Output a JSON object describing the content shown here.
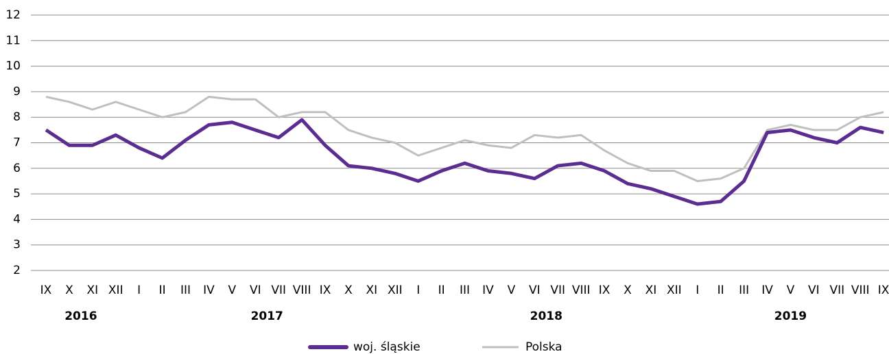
{
  "chart_data": {
    "type": "line",
    "categories": [
      "IX",
      "X",
      "XI",
      "XII",
      "I",
      "II",
      "III",
      "IV",
      "V",
      "VI",
      "VII",
      "VIII",
      "IX",
      "X",
      "XI",
      "XII",
      "I",
      "II",
      "III",
      "IV",
      "V",
      "VI",
      "VII",
      "VIII",
      "IX",
      "X",
      "XI",
      "XII",
      "I",
      "II",
      "III",
      "IV",
      "V",
      "VI",
      "VII",
      "VIII",
      "IX"
    ],
    "year_groups": [
      {
        "label": "2016",
        "size": 4
      },
      {
        "label": "2017",
        "size": 12
      },
      {
        "label": "2018",
        "size": 12
      },
      {
        "label": "2019",
        "size": 9
      }
    ],
    "series": [
      {
        "name": "woj. śląskie",
        "color": "#5c2d91",
        "values": [
          7.5,
          6.9,
          6.9,
          7.3,
          6.8,
          6.4,
          7.1,
          7.7,
          7.8,
          7.5,
          7.2,
          7.9,
          6.9,
          6.1,
          6.0,
          5.8,
          5.5,
          5.9,
          6.2,
          5.9,
          5.8,
          5.6,
          6.1,
          6.2,
          5.9,
          5.4,
          5.2,
          4.9,
          4.6,
          4.7,
          5.5,
          7.4,
          7.5,
          7.2,
          7.0,
          7.6,
          7.4
        ]
      },
      {
        "name": "Polska",
        "color": "#bfbfbf",
        "values": [
          8.8,
          8.6,
          8.3,
          8.6,
          8.3,
          8.0,
          8.2,
          8.8,
          8.7,
          8.7,
          8.0,
          8.2,
          8.2,
          7.5,
          7.2,
          7.0,
          6.5,
          6.8,
          7.1,
          6.9,
          6.8,
          7.3,
          7.2,
          7.3,
          6.7,
          6.2,
          5.9,
          5.9,
          5.5,
          5.6,
          6.0,
          7.5,
          7.7,
          7.5,
          7.5,
          8.0,
          8.2
        ]
      }
    ],
    "ylim": [
      2,
      12
    ],
    "yticks": [
      2,
      3,
      4,
      5,
      6,
      7,
      8,
      9,
      10,
      11,
      12
    ],
    "grid": true,
    "legend": "bottom"
  }
}
